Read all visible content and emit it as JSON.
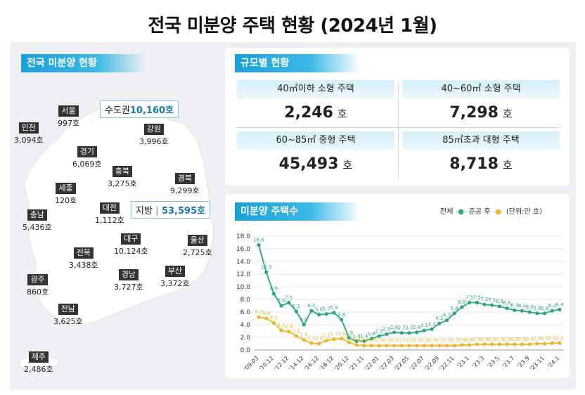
{
  "title": "전국 미분양 주택 현황  (2024년 1월)",
  "map_section": {
    "header": "전국 미분양 현황",
    "capital": {
      "label": "수도권",
      "value": "10,160호"
    },
    "local": {
      "label": "지방",
      "value": "53,595호"
    },
    "regions": [
      {
        "name": "서울",
        "value": "997호"
      },
      {
        "name": "인천",
        "value": "3,094호"
      },
      {
        "name": "강원",
        "value": "3,996호"
      },
      {
        "name": "경기",
        "value": "6,069호"
      },
      {
        "name": "충북",
        "value": "3,275호"
      },
      {
        "name": "경북",
        "value": "9,299호"
      },
      {
        "name": "세종",
        "value": "120호"
      },
      {
        "name": "충남",
        "value": "5,436호"
      },
      {
        "name": "대전",
        "value": "1,112호"
      },
      {
        "name": "대구",
        "value": "10,124호"
      },
      {
        "name": "울산",
        "value": "2,725호"
      },
      {
        "name": "전북",
        "value": "3,438호"
      },
      {
        "name": "경남",
        "value": "3,727호"
      },
      {
        "name": "부산",
        "value": "3,372호"
      },
      {
        "name": "광주",
        "value": "860호"
      },
      {
        "name": "전남",
        "value": "3,625호"
      },
      {
        "name": "제주",
        "value": "2,486호"
      }
    ]
  },
  "size_section": {
    "header": "규모별 현황",
    "items": [
      {
        "label": "40㎡이하 소형 주택",
        "value": "2,246",
        "unit": "호"
      },
      {
        "label": "40~60㎡ 소형 주택",
        "value": "7,298",
        "unit": "호"
      },
      {
        "label": "60~85㎡ 중형 주택",
        "value": "45,493",
        "unit": "호"
      },
      {
        "label": "85㎡초과 대형 주택",
        "value": "8,718",
        "unit": "호"
      }
    ]
  },
  "chart_section": {
    "header": "미분양 주택수",
    "legend_total": "전체",
    "legend_completed": "준공 후",
    "unit_note": "(단위:만 호)"
  },
  "colors": {
    "total": "#2aa876",
    "completed": "#f0b429",
    "accent": "#1aa0d8"
  },
  "chart_data": {
    "type": "line",
    "ylim": [
      0,
      18
    ],
    "yticks": [
      "0.0",
      "2.0",
      "4.0",
      "6.0",
      "8.0",
      "10.0",
      "12.0",
      "14.0",
      "16.0",
      "18.0"
    ],
    "xtick_labels": [
      "'09.03",
      "'10.12",
      "'12.12",
      "'14.12",
      "'16.12",
      "'18.12",
      "'20.12",
      "'21.11",
      "'22.01",
      "'22.03",
      "'22.05",
      "'22.07",
      "'22.09",
      "'22.11",
      "'23.1",
      "'23.3",
      "'23.5",
      "'23.7",
      "'23.9",
      "'23.11",
      "'24.1"
    ],
    "series": [
      {
        "name": "전체",
        "values": [
          16.6,
          12.3,
          8.9,
          7.0,
          7.5,
          6.1,
          4.0,
          6.2,
          5.6,
          5.7,
          5.9,
          4.8,
          1.9,
          1.4,
          1.4,
          1.8,
          2.2,
          2.5,
          2.8,
          2.7,
          2.7,
          2.8,
          3.1,
          3.3,
          4.2,
          4.7,
          5.8,
          6.8,
          7.5,
          7.5,
          7.2,
          7.1,
          6.9,
          6.6,
          6.3,
          6.2,
          6.0,
          5.8,
          5.8,
          6.2,
          6.4
        ],
        "labels": [
          "16.6",
          "12.3",
          "8.9",
          "7.0",
          "7.5",
          "6.1",
          "4.0",
          "6.2",
          "5.6",
          "5.7",
          "5.9",
          "4.8",
          "1.9",
          "1.4",
          "1.4",
          "1.8",
          "2.2",
          "2.5",
          "2.8",
          "2.7",
          "2.7",
          "2.8",
          "3.1",
          "3.3",
          "4.2",
          "4.7",
          "5.8",
          "6.8",
          "7.5",
          "7.5",
          "7.2",
          "7.1",
          "6.9",
          "6.6",
          "6.3",
          "6.2",
          "6.0",
          "5.8",
          "5.8",
          "6.2",
          "6.4"
        ]
      },
      {
        "name": "준공 후",
        "values": [
          5.2,
          5.0,
          4.3,
          3.1,
          2.9,
          2.2,
          1.6,
          1.1,
          1.0,
          1.5,
          1.7,
          1.8,
          1.2,
          0.8,
          0.7,
          0.7,
          0.7,
          0.7,
          0.7,
          0.7,
          0.7,
          0.7,
          0.7,
          0.7,
          0.7,
          0.7,
          0.7,
          0.8,
          0.8,
          0.9,
          0.9,
          0.9,
          0.9,
          0.9,
          0.9,
          0.9,
          0.9,
          1.0,
          1.0,
          1.1,
          1.1
        ],
        "labels": [
          "5.2",
          "5.0",
          "4.3",
          "3.1",
          "2.9",
          "2.2",
          "1.6",
          "1.1",
          "1.0",
          "1.5",
          "1.7",
          "1.8",
          "1.2",
          "0.8",
          "0.7",
          "0.7",
          "0.7",
          "0.7",
          "0.7",
          "0.7",
          "0.7",
          "0.7",
          "0.7",
          "0.7",
          "0.7",
          "0.7",
          "0.7",
          "0.8",
          "0.8",
          "0.9",
          "0.9",
          "0.9",
          "0.9",
          "0.9",
          "0.9",
          "0.9",
          "0.9",
          "1.0",
          "1.0",
          "1.1",
          "1.1"
        ]
      }
    ]
  }
}
